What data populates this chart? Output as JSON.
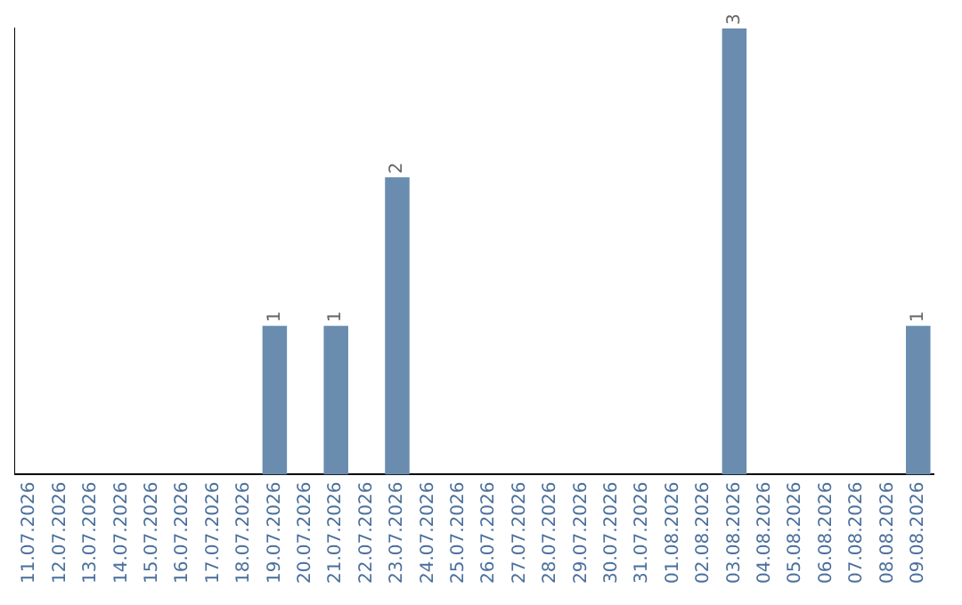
{
  "chart_data": {
    "type": "bar",
    "categories": [
      "11.07.2026",
      "12.07.2026",
      "13.07.2026",
      "14.07.2026",
      "15.07.2026",
      "16.07.2026",
      "17.07.2026",
      "18.07.2026",
      "19.07.2026",
      "20.07.2026",
      "21.07.2026",
      "22.07.2026",
      "23.07.2026",
      "24.07.2026",
      "25.07.2026",
      "26.07.2026",
      "27.07.2026",
      "28.07.2026",
      "29.07.2026",
      "30.07.2026",
      "31.07.2026",
      "01.08.2026",
      "02.08.2026",
      "03.08.2026",
      "04.08.2026",
      "05.08.2026",
      "06.08.2026",
      "07.08.2026",
      "08.08.2026",
      "09.08.2026"
    ],
    "values": [
      0,
      0,
      0,
      0,
      0,
      0,
      0,
      0,
      1,
      0,
      1,
      0,
      2,
      0,
      0,
      0,
      0,
      0,
      0,
      0,
      0,
      0,
      0,
      3,
      0,
      0,
      0,
      0,
      0,
      1
    ],
    "value_labels": [
      null,
      null,
      null,
      null,
      null,
      null,
      null,
      null,
      "1",
      null,
      "1",
      null,
      "2",
      null,
      null,
      null,
      null,
      null,
      null,
      null,
      null,
      null,
      null,
      "3",
      null,
      null,
      null,
      null,
      null,
      "1"
    ],
    "color": "#6a8caf",
    "ylim": [
      0,
      3
    ],
    "grid": false,
    "legend": false,
    "tick_labels": "x"
  }
}
